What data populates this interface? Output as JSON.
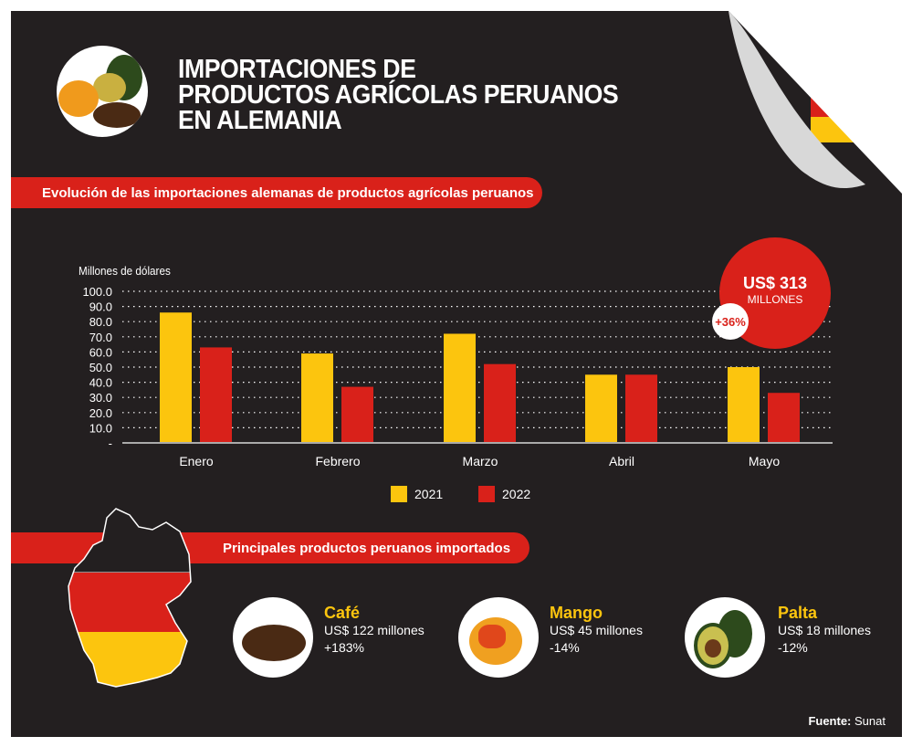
{
  "header": {
    "title_lines": [
      "IMPORTACIONES DE",
      "PRODUCTOS AGRÍCOLAS PERUANOS",
      "EN ALEMANIA"
    ]
  },
  "section1": {
    "title": "Evolución de las importaciones alemanas de productos agrícolas peruanos"
  },
  "highlight": {
    "amount": "US$ 313",
    "unit": "MILLONES",
    "change": "+36%"
  },
  "chart_data": {
    "type": "bar",
    "ylabel": "Millones de dólares",
    "categories": [
      "Enero",
      "Febrero",
      "Marzo",
      "Abril",
      "Mayo"
    ],
    "yticks": [
      "-",
      "10.0",
      "20.0",
      "30.0",
      "40.0",
      "50.0",
      "60.0",
      "70.0",
      "80.0",
      "90.0",
      "100.0"
    ],
    "ylim": [
      0,
      100
    ],
    "grid": true,
    "legend_position": "bottom",
    "series": [
      {
        "name": "2021",
        "color": "#fcc50e",
        "values": [
          86,
          59,
          72,
          45,
          50
        ]
      },
      {
        "name": "2022",
        "color": "#d9211a",
        "values": [
          63,
          37,
          52,
          45,
          33
        ]
      }
    ]
  },
  "section2": {
    "title": "Principales productos peruanos importados"
  },
  "products": [
    {
      "name": "Café",
      "value": "US$ 122 millones",
      "change": "+183%"
    },
    {
      "name": "Mango",
      "value": "US$ 45 millones",
      "change": "-14%"
    },
    {
      "name": "Palta",
      "value": "US$ 18 millones",
      "change": "-12%"
    }
  ],
  "source": {
    "label": "Fuente:",
    "value": "Sunat"
  }
}
